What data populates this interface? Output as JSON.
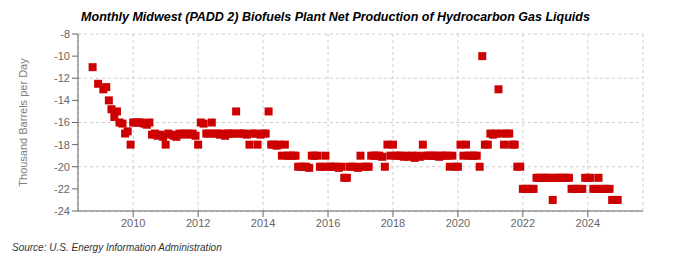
{
  "chart_data": {
    "type": "scatter",
    "title": "Monthly Midwest (PADD 2) Biofuels Plant Net Production of Hydrocarbon Gas Liquids",
    "ylabel": "Thousand Barrels per Day",
    "annotations": [
      "Source: U.S. Energy Information Administration"
    ],
    "color": "#cc0000",
    "marker": "square",
    "grid": true,
    "xlim": [
      2008.3,
      2025.7
    ],
    "xticks": [
      2010,
      2012,
      2014,
      2016,
      2018,
      2020,
      2022,
      2024
    ],
    "ylim": [
      -24,
      -8
    ],
    "yticks": [
      -8,
      -10,
      -12,
      -14,
      -16,
      -18,
      -20,
      -22,
      -24
    ],
    "x": [
      2008.75,
      2008.92,
      2009.08,
      2009.17,
      2009.25,
      2009.33,
      2009.42,
      2009.5,
      2009.58,
      2009.67,
      2009.75,
      2009.83,
      2009.92,
      2010.0,
      2010.08,
      2010.17,
      2010.25,
      2010.33,
      2010.42,
      2010.5,
      2010.58,
      2010.67,
      2010.75,
      2010.83,
      2010.92,
      2011.0,
      2011.08,
      2011.17,
      2011.25,
      2011.33,
      2011.42,
      2011.5,
      2011.58,
      2011.67,
      2011.75,
      2011.83,
      2011.92,
      2012.0,
      2012.08,
      2012.17,
      2012.25,
      2012.33,
      2012.42,
      2012.5,
      2012.58,
      2012.67,
      2012.75,
      2012.83,
      2012.92,
      2013.0,
      2013.08,
      2013.17,
      2013.25,
      2013.33,
      2013.42,
      2013.5,
      2013.58,
      2013.67,
      2013.75,
      2013.83,
      2013.92,
      2014.0,
      2014.08,
      2014.17,
      2014.25,
      2014.33,
      2014.42,
      2014.5,
      2014.58,
      2014.67,
      2014.75,
      2014.83,
      2014.92,
      2015.0,
      2015.08,
      2015.17,
      2015.25,
      2015.33,
      2015.42,
      2015.5,
      2015.58,
      2015.67,
      2015.75,
      2015.83,
      2015.92,
      2016.0,
      2016.08,
      2016.17,
      2016.25,
      2016.33,
      2016.42,
      2016.5,
      2016.58,
      2016.67,
      2016.75,
      2016.83,
      2016.92,
      2017.0,
      2017.08,
      2017.17,
      2017.25,
      2017.33,
      2017.42,
      2017.5,
      2017.58,
      2017.67,
      2017.75,
      2017.83,
      2017.92,
      2018.0,
      2018.08,
      2018.17,
      2018.25,
      2018.33,
      2018.42,
      2018.5,
      2018.58,
      2018.67,
      2018.75,
      2018.83,
      2018.92,
      2019.0,
      2019.08,
      2019.17,
      2019.25,
      2019.33,
      2019.42,
      2019.5,
      2019.58,
      2019.67,
      2019.75,
      2019.83,
      2019.92,
      2020.0,
      2020.08,
      2020.17,
      2020.25,
      2020.33,
      2020.42,
      2020.5,
      2020.58,
      2020.67,
      2020.75,
      2020.83,
      2020.92,
      2021.0,
      2021.08,
      2021.17,
      2021.25,
      2021.33,
      2021.42,
      2021.5,
      2021.58,
      2021.67,
      2021.75,
      2021.83,
      2021.92,
      2022.0,
      2022.08,
      2022.17,
      2022.25,
      2022.33,
      2022.42,
      2022.5,
      2022.58,
      2022.67,
      2022.75,
      2022.83,
      2022.92,
      2023.0,
      2023.08,
      2023.17,
      2023.25,
      2023.33,
      2023.42,
      2023.5,
      2023.58,
      2023.67,
      2023.75,
      2023.83,
      2023.92,
      2024.0,
      2024.08,
      2024.17,
      2024.25,
      2024.33,
      2024.42,
      2024.5,
      2024.58,
      2024.67,
      2024.75,
      2024.83,
      2024.92
    ],
    "values": [
      -11.0,
      -12.5,
      -13.0,
      -12.8,
      -14.0,
      -14.8,
      -15.5,
      -15.0,
      -16.0,
      -16.1,
      -17.0,
      -16.8,
      -18.0,
      -16.0,
      -16.0,
      -16.0,
      -16.0,
      -16.1,
      -16.2,
      -16.0,
      -17.1,
      -17.0,
      -17.2,
      -17.1,
      -17.3,
      -18.0,
      -17.0,
      -17.1,
      -17.2,
      -17.3,
      -17.0,
      -17.1,
      -17.0,
      -17.0,
      -17.1,
      -17.0,
      -17.2,
      -18.0,
      -16.0,
      -16.1,
      -17.0,
      -17.0,
      -16.0,
      -17.0,
      -17.0,
      -17.1,
      -17.0,
      -17.2,
      -17.0,
      -17.0,
      -17.0,
      -15.0,
      -17.0,
      -17.0,
      -17.0,
      -17.1,
      -18.0,
      -17.0,
      -17.0,
      -18.0,
      -17.1,
      -17.0,
      -17.0,
      -15.0,
      -18.0,
      -18.0,
      -18.1,
      -18.0,
      -19.0,
      -18.0,
      -19.0,
      -19.0,
      -19.0,
      -19.0,
      -20.0,
      -20.0,
      -20.0,
      -20.0,
      -20.1,
      -19.0,
      -19.0,
      -19.0,
      -20.0,
      -20.0,
      -19.0,
      -20.0,
      -20.0,
      -20.0,
      -20.0,
      -20.1,
      -20.0,
      -21.0,
      -21.0,
      -20.0,
      -20.0,
      -20.0,
      -20.1,
      -19.0,
      -20.0,
      -20.0,
      -20.0,
      -19.0,
      -19.0,
      -19.0,
      -19.0,
      -19.1,
      -20.0,
      -18.0,
      -19.0,
      -18.0,
      -19.0,
      -19.0,
      -19.0,
      -19.1,
      -19.0,
      -19.1,
      -19.0,
      -19.2,
      -19.0,
      -19.1,
      -18.0,
      -19.0,
      -19.0,
      -19.0,
      -19.0,
      -19.0,
      -19.1,
      -19.0,
      -19.0,
      -19.0,
      -20.0,
      -19.0,
      -20.0,
      -20.0,
      -18.0,
      -19.0,
      -18.0,
      -19.0,
      -19.0,
      -19.0,
      -19.0,
      -20.0,
      -10.0,
      -18.0,
      -18.0,
      -17.0,
      -17.1,
      -17.0,
      -13.0,
      -17.0,
      -18.0,
      -17.0,
      -17.0,
      -18.0,
      -18.0,
      -20.0,
      -20.0,
      -22.0,
      -22.0,
      -22.0,
      -22.0,
      -22.0,
      -21.0,
      -21.0,
      -21.0,
      -21.0,
      -21.0,
      -21.0,
      -23.0,
      -21.0,
      -21.0,
      -21.0,
      -21.0,
      -21.0,
      -21.0,
      -22.0,
      -22.0,
      -22.0,
      -22.0,
      -22.0,
      -21.0,
      -21.0,
      -21.0,
      -22.0,
      -22.0,
      -21.0,
      -22.0,
      -22.0,
      -22.0,
      -22.0,
      -23.0,
      -23.0,
      -23.0
    ]
  }
}
